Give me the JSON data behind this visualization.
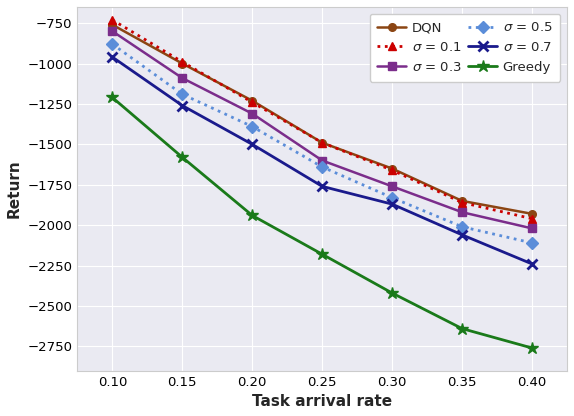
{
  "x": [
    0.1,
    0.15,
    0.2,
    0.25,
    0.3,
    0.35,
    0.4
  ],
  "DQN": [
    -760,
    -1000,
    -1230,
    -1490,
    -1650,
    -1850,
    -1930
  ],
  "sigma_0.1": [
    -730,
    -990,
    -1240,
    -1490,
    -1660,
    -1860,
    -1960
  ],
  "sigma_0.3": [
    -800,
    -1090,
    -1310,
    -1600,
    -1760,
    -1920,
    -2020
  ],
  "sigma_0.5": [
    -880,
    -1190,
    -1390,
    -1640,
    -1830,
    -2010,
    -2110
  ],
  "sigma_0.7": [
    -960,
    -1260,
    -1500,
    -1760,
    -1870,
    -2060,
    -2240
  ],
  "Greedy": [
    -1210,
    -1580,
    -1940,
    -2180,
    -2420,
    -2640,
    -2760
  ],
  "colors": {
    "DQN": "#8B4513",
    "sigma_0.1": "#CC0000",
    "sigma_0.3": "#7B2D8B",
    "sigma_0.5": "#5B8DD9",
    "sigma_0.7": "#1A1A8C",
    "Greedy": "#1A7A1A"
  },
  "xlabel": "Task arrival rate",
  "ylabel": "Return",
  "xlim": [
    0.075,
    0.425
  ],
  "ylim": [
    -2900,
    -650
  ],
  "xticks": [
    0.1,
    0.15,
    0.2,
    0.25,
    0.3,
    0.35,
    0.4
  ],
  "yticks": [
    -2750,
    -2500,
    -2250,
    -2000,
    -1750,
    -1500,
    -1250,
    -1000,
    -750
  ]
}
